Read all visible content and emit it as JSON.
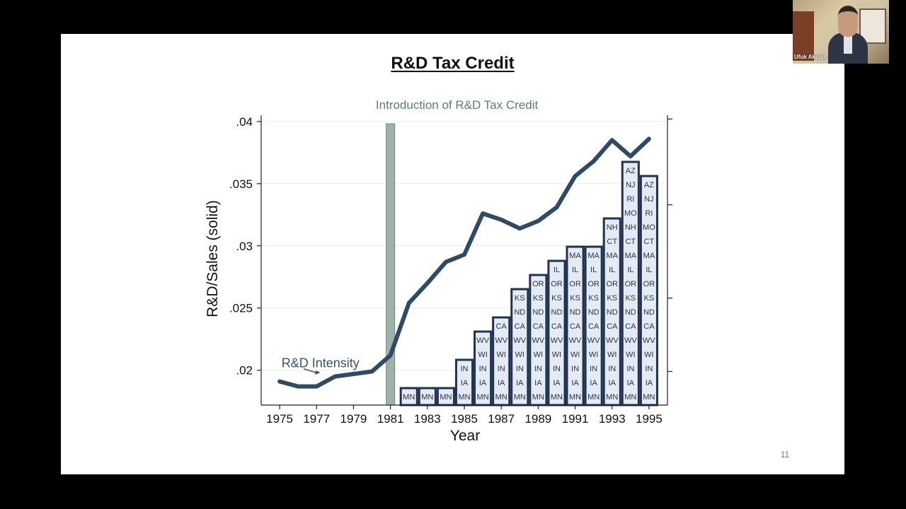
{
  "slide": {
    "title": "R&D Tax Credit",
    "page_number": "11"
  },
  "video_tile": {
    "participant_name": "Ufuk Akcigit"
  },
  "colors": {
    "line": "#2f4a66",
    "bar_fill": "#e3ebf6",
    "bar_stroke": "#22334f",
    "introduction_band": "#9db3aa",
    "introduction_text": "#5a7f7b",
    "annotation": "#3a5470"
  },
  "chart_data": {
    "type": "line",
    "title": "",
    "xlabel": "Year",
    "ylabel": "R&D/Sales (solid)",
    "xlim": [
      1974,
      1996
    ],
    "ylim": [
      0.0172,
      0.0405
    ],
    "x_ticks": [
      1975,
      1977,
      1979,
      1981,
      1983,
      1985,
      1987,
      1989,
      1991,
      1993,
      1995
    ],
    "x_tick_labels": [
      "1975",
      "1977",
      "1979",
      "1981",
      "1983",
      "1985",
      "1987",
      "1989",
      "1991",
      "1993",
      "1995"
    ],
    "y_ticks": [
      0.02,
      0.025,
      0.03,
      0.035,
      0.04
    ],
    "y_tick_labels": [
      ".02",
      ".025",
      ".03",
      ".035",
      ".04"
    ],
    "right_axis_ticks": [
      0.0199,
      0.0258,
      0.0333,
      0.0402
    ],
    "grid": true,
    "series": [
      {
        "name": "R&D Intensity",
        "x": [
          1975,
          1976,
          1977,
          1978,
          1979,
          1980,
          1981,
          1982,
          1983,
          1984,
          1985,
          1986,
          1987,
          1988,
          1989,
          1990,
          1991,
          1992,
          1993,
          1994,
          1995
        ],
        "y": [
          0.0191,
          0.0187,
          0.0187,
          0.0195,
          0.0197,
          0.0199,
          0.0212,
          0.0254,
          0.027,
          0.0287,
          0.0293,
          0.0326,
          0.0321,
          0.0314,
          0.032,
          0.0331,
          0.0356,
          0.0368,
          0.0385,
          0.0372,
          0.0386
        ]
      }
    ],
    "series_label": {
      "text": "R&D Intensity"
    },
    "event": {
      "year": 1981,
      "label": "Introduction of R&D Tax Credit"
    },
    "bars": {
      "description_years": [
        1982,
        1983,
        1984,
        1985,
        1986,
        1987,
        1988,
        1989,
        1990,
        1991,
        1992,
        1993,
        1994,
        1995
      ],
      "stacks": [
        [
          "MN"
        ],
        [
          "MN"
        ],
        [
          "MN"
        ],
        [
          "MN",
          "IA",
          "IN"
        ],
        [
          "MN",
          "IA",
          "IN",
          "WI",
          "WV"
        ],
        [
          "MN",
          "IA",
          "IN",
          "WI",
          "WV",
          "CA"
        ],
        [
          "MN",
          "IA",
          "IN",
          "WI",
          "WV",
          "CA",
          "ND",
          "KS"
        ],
        [
          "MN",
          "IA",
          "IN",
          "WI",
          "WV",
          "CA",
          "ND",
          "KS",
          "OR"
        ],
        [
          "MN",
          "IA",
          "IN",
          "WI",
          "WV",
          "CA",
          "ND",
          "KS",
          "OR",
          "IL"
        ],
        [
          "MN",
          "IA",
          "IN",
          "WI",
          "WV",
          "CA",
          "ND",
          "KS",
          "OR",
          "IL",
          "MA"
        ],
        [
          "MN",
          "IA",
          "IN",
          "WI",
          "WV",
          "CA",
          "ND",
          "KS",
          "OR",
          "IL",
          "MA"
        ],
        [
          "MN",
          "IA",
          "IN",
          "WI",
          "WV",
          "CA",
          "ND",
          "KS",
          "OR",
          "IL",
          "MA",
          "CT",
          "NH"
        ],
        [
          "MN",
          "IA",
          "IN",
          "WI",
          "WV",
          "CA",
          "ND",
          "KS",
          "OR",
          "IL",
          "MA",
          "CT",
          "NH",
          "MO",
          "RI",
          "NJ",
          "AZ"
        ],
        [
          "MN",
          "IA",
          "IN",
          "WI",
          "WV",
          "CA",
          "ND",
          "KS",
          "OR",
          "IL",
          "MA",
          "CT",
          "MO",
          "RI",
          "NJ",
          "AZ"
        ]
      ]
    }
  }
}
